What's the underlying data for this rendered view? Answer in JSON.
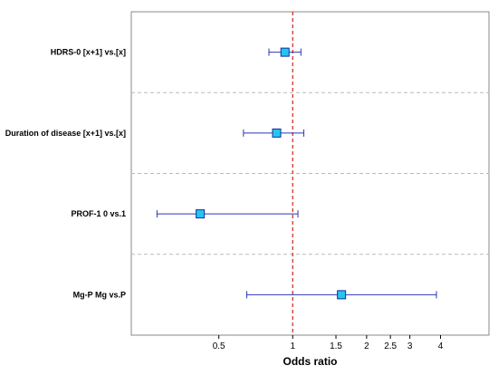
{
  "chart_data": {
    "type": "forest",
    "xlabel": "Odds ratio",
    "x_scale": "log",
    "xlim": [
      0.22,
      6.3
    ],
    "reference_line": 1,
    "x_ticks": [
      {
        "value": 0.5,
        "label": "0.5"
      },
      {
        "value": 1,
        "label": "1"
      },
      {
        "value": 1.5,
        "label": "1.5"
      },
      {
        "value": 2,
        "label": "2"
      },
      {
        "value": 2.5,
        "label": "2.5"
      },
      {
        "value": 3,
        "label": "3"
      },
      {
        "value": 4,
        "label": "4"
      }
    ],
    "rows": [
      {
        "label": "HDRS-0 [x+1] vs.[x]",
        "or": 0.93,
        "lower": 0.8,
        "upper": 1.08
      },
      {
        "label": "Duration of disease [x+1] vs.[x]",
        "or": 0.86,
        "lower": 0.63,
        "upper": 1.11
      },
      {
        "label": "PROF-1  0 vs.1",
        "or": 0.42,
        "lower": 0.28,
        "upper": 1.05
      },
      {
        "label": "Mg-P  Mg vs.P",
        "or": 1.58,
        "lower": 0.65,
        "upper": 3.85
      }
    ],
    "colors": {
      "marker_fill": "#22c7f0",
      "marker_stroke": "#1a2a9a",
      "ci_line": "#2a35b8",
      "reference_line": "#cc2222",
      "separator": "#bbbbbb",
      "frame": "#888888"
    }
  }
}
